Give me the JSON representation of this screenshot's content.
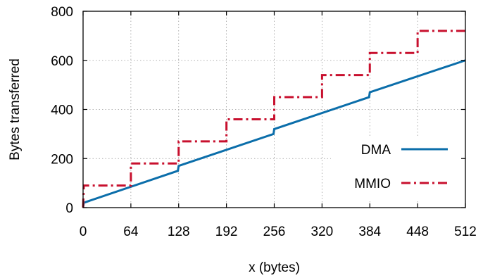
{
  "chart_data": {
    "type": "line",
    "title": "",
    "xlabel": "x (bytes)",
    "ylabel": "Bytes transferred",
    "xlim": [
      0,
      512
    ],
    "ylim": [
      0,
      800
    ],
    "xticks": [
      0,
      64,
      128,
      192,
      256,
      320,
      384,
      448,
      512
    ],
    "yticks": [
      0,
      200,
      400,
      600,
      800
    ],
    "grid": true,
    "legend_position": "right",
    "series": [
      {
        "name": "DMA",
        "color": "#0b6eaa",
        "style": "solid",
        "x": [
          0,
          1,
          127,
          128,
          255,
          256,
          383,
          384,
          512
        ],
        "y": [
          0,
          20,
          150,
          170,
          300,
          320,
          450,
          470,
          600
        ]
      },
      {
        "name": "MMIO",
        "color": "#c8102e",
        "style": "dash-dot",
        "x": [
          0,
          1,
          64,
          64,
          128,
          128,
          192,
          192,
          256,
          256,
          320,
          320,
          384,
          384,
          448,
          448,
          512
        ],
        "y": [
          0,
          90,
          90,
          180,
          180,
          270,
          270,
          360,
          360,
          450,
          450,
          540,
          540,
          630,
          630,
          720,
          720
        ]
      }
    ]
  }
}
